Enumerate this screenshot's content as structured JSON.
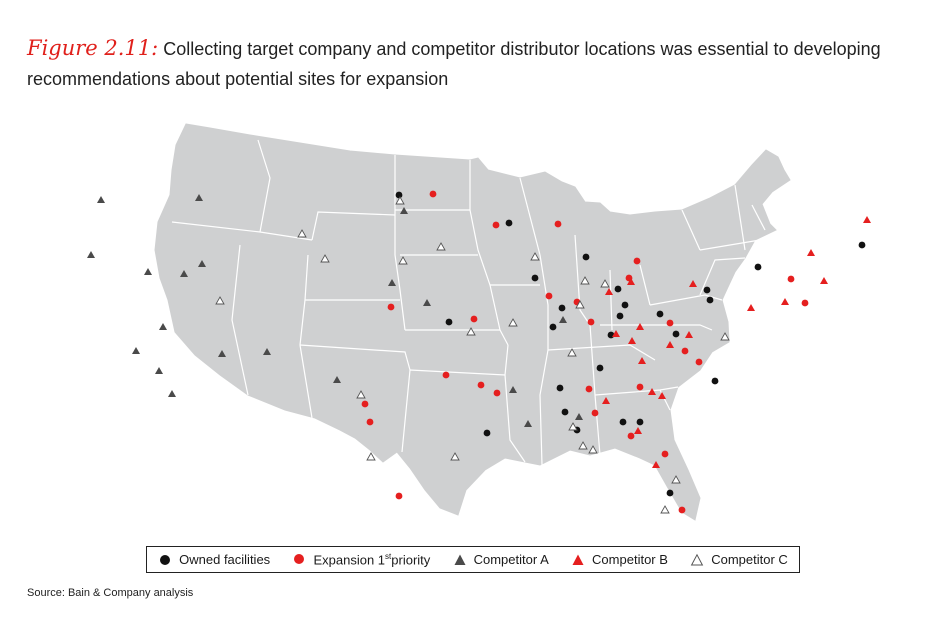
{
  "figure": {
    "number": "Figure 2.11:",
    "title": "Collecting target company and competitor distributor locations was essential to developing recommendations about potential sites for expansion"
  },
  "legend": {
    "owned": "Owned facilities",
    "expansion_main": "Expansion 1",
    "expansion_sup": "st",
    "expansion_tail": "priority",
    "comp_a": "Competitor A",
    "comp_b": "Competitor B",
    "comp_c": "Competitor C"
  },
  "source": "Source: Bain & Company analysis",
  "colors": {
    "land": "#cfd0d1",
    "border": "#ffffff",
    "owned": "#111111",
    "expansion": "#e51f1f",
    "comp_a": "#4a4a4a",
    "comp_b": "#e51f1f",
    "comp_c": "#ffffff"
  },
  "markers": {
    "owned": [
      {
        "lon": -100.8,
        "lat": 46.8
      },
      {
        "lon": -93.3,
        "lat": 45.0
      },
      {
        "lon": -88.0,
        "lat": 43.0
      },
      {
        "lon": -91.5,
        "lat": 41.6
      },
      {
        "lon": -97.5,
        "lat": 38.8
      },
      {
        "lon": -89.6,
        "lat": 39.8
      },
      {
        "lon": -90.2,
        "lat": 38.6
      },
      {
        "lon": -85.7,
        "lat": 41.1
      },
      {
        "lon": -85.5,
        "lat": 39.4
      },
      {
        "lon": -85.2,
        "lat": 40.1
      },
      {
        "lon": -86.1,
        "lat": 38.2
      },
      {
        "lon": -86.8,
        "lat": 36.1
      },
      {
        "lon": -82.7,
        "lat": 39.7
      },
      {
        "lon": -81.5,
        "lat": 38.5
      },
      {
        "lon": -79.5,
        "lat": 41.4
      },
      {
        "lon": -79.3,
        "lat": 40.8
      },
      {
        "lon": -76.1,
        "lat": 43.1
      },
      {
        "lon": -69.2,
        "lat": 45.2
      },
      {
        "lon": -78.6,
        "lat": 35.8
      },
      {
        "lon": -89.6,
        "lat": 34.8
      },
      {
        "lon": -89.2,
        "lat": 33.3
      },
      {
        "lon": -88.3,
        "lat": 32.2
      },
      {
        "lon": -85.0,
        "lat": 32.8
      },
      {
        "lon": -83.8,
        "lat": 32.9
      },
      {
        "lon": -94.8,
        "lat": 31.9
      },
      {
        "lon": -81.4,
        "lat": 28.6
      }
    ],
    "expansion": [
      {
        "lon": -98.5,
        "lat": 46.8
      },
      {
        "lon": -94.2,
        "lat": 44.9
      },
      {
        "lon": -90.0,
        "lat": 45.0
      },
      {
        "lon": -101.5,
        "lat": 39.8
      },
      {
        "lon": -95.7,
        "lat": 39.0
      },
      {
        "lon": -90.5,
        "lat": 40.5
      },
      {
        "lon": -88.5,
        "lat": 40.2
      },
      {
        "lon": -87.5,
        "lat": 39.0
      },
      {
        "lon": -84.5,
        "lat": 42.9
      },
      {
        "lon": -85.0,
        "lat": 41.8
      },
      {
        "lon": -82.0,
        "lat": 39.2
      },
      {
        "lon": -80.8,
        "lat": 37.5
      },
      {
        "lon": -79.8,
        "lat": 36.9
      },
      {
        "lon": -73.8,
        "lat": 42.6
      },
      {
        "lon": -72.7,
        "lat": 41.2
      },
      {
        "lon": -97.7,
        "lat": 35.5
      },
      {
        "lon": -95.2,
        "lat": 34.9
      },
      {
        "lon": -94.1,
        "lat": 34.4
      },
      {
        "lon": -103.5,
        "lat": 33.8
      },
      {
        "lon": -103.2,
        "lat": 32.7
      },
      {
        "lon": -101.2,
        "lat": 28.0
      },
      {
        "lon": -87.5,
        "lat": 34.8
      },
      {
        "lon": -87.0,
        "lat": 33.3
      },
      {
        "lon": -83.9,
        "lat": 35.1
      },
      {
        "lon": -84.4,
        "lat": 32.0
      },
      {
        "lon": -80.4,
        "lat": 27.6
      },
      {
        "lon": -81.9,
        "lat": 31.0
      }
    ],
    "comp_a": [
      {
        "lon": -121.0,
        "lat": 47.8
      },
      {
        "lon": -114.4,
        "lat": 47.3
      },
      {
        "lon": -122.0,
        "lat": 44.5
      },
      {
        "lon": -118.2,
        "lat": 43.0
      },
      {
        "lon": -115.8,
        "lat": 42.7
      },
      {
        "lon": -114.5,
        "lat": 43.2
      },
      {
        "lon": -117.5,
        "lat": 39.5
      },
      {
        "lon": -119.5,
        "lat": 38.2
      },
      {
        "lon": -118.0,
        "lat": 36.8
      },
      {
        "lon": -117.2,
        "lat": 35.3
      },
      {
        "lon": -113.5,
        "lat": 37.5
      },
      {
        "lon": -110.3,
        "lat": 37.4
      },
      {
        "lon": -105.5,
        "lat": 35.4
      },
      {
        "lon": -100.5,
        "lat": 45.8
      },
      {
        "lon": -101.4,
        "lat": 41.3
      },
      {
        "lon": -99.0,
        "lat": 40.0
      },
      {
        "lon": -92.9,
        "lat": 34.6
      },
      {
        "lon": -91.8,
        "lat": 32.5
      },
      {
        "lon": -89.5,
        "lat": 39.0
      },
      {
        "lon": -88.2,
        "lat": 33.0
      }
    ],
    "comp_b": [
      {
        "lon": -69.0,
        "lat": 46.8
      },
      {
        "lon": -71.5,
        "lat": 42.7
      },
      {
        "lon": -72.6,
        "lat": 44.3
      },
      {
        "lon": -74.1,
        "lat": 41.1
      },
      {
        "lon": -76.4,
        "lat": 40.5
      },
      {
        "lon": -80.5,
        "lat": 41.7
      },
      {
        "lon": -84.8,
        "lat": 41.6
      },
      {
        "lon": -86.3,
        "lat": 40.9
      },
      {
        "lon": -85.7,
        "lat": 38.3
      },
      {
        "lon": -84.6,
        "lat": 37.9
      },
      {
        "lon": -84.1,
        "lat": 38.8
      },
      {
        "lon": -83.8,
        "lat": 36.7
      },
      {
        "lon": -81.9,
        "lat": 37.8
      },
      {
        "lon": -80.6,
        "lat": 38.5
      },
      {
        "lon": -83.0,
        "lat": 34.8
      },
      {
        "lon": -82.3,
        "lat": 34.6
      },
      {
        "lon": -83.9,
        "lat": 32.3
      },
      {
        "lon": -86.3,
        "lat": 34.1
      },
      {
        "lon": -82.5,
        "lat": 30.3
      }
    ],
    "comp_c": [
      {
        "lon": -100.8,
        "lat": 46.4
      },
      {
        "lon": -107.5,
        "lat": 44.6
      },
      {
        "lon": -106.0,
        "lat": 43.0
      },
      {
        "lon": -98.0,
        "lat": 43.5
      },
      {
        "lon": -100.6,
        "lat": 42.7
      },
      {
        "lon": -113.4,
        "lat": 40.8
      },
      {
        "lon": -95.9,
        "lat": 38.2
      },
      {
        "lon": -93.0,
        "lat": 38.8
      },
      {
        "lon": -91.5,
        "lat": 42.9
      },
      {
        "lon": -88.0,
        "lat": 41.5
      },
      {
        "lon": -88.3,
        "lat": 40.0
      },
      {
        "lon": -88.8,
        "lat": 37.0
      },
      {
        "lon": -103.8,
        "lat": 34.4
      },
      {
        "lon": -103.2,
        "lat": 30.5
      },
      {
        "lon": -97.1,
        "lat": 30.4
      },
      {
        "lon": -87.8,
        "lat": 31.2
      },
      {
        "lon": -87.1,
        "lat": 31.0
      },
      {
        "lon": -88.6,
        "lat": 32.4
      },
      {
        "lon": -81.0,
        "lat": 29.4
      },
      {
        "lon": -81.7,
        "lat": 27.5
      },
      {
        "lon": -78.1,
        "lat": 38.6
      },
      {
        "lon": -86.6,
        "lat": 41.4
      }
    ]
  }
}
